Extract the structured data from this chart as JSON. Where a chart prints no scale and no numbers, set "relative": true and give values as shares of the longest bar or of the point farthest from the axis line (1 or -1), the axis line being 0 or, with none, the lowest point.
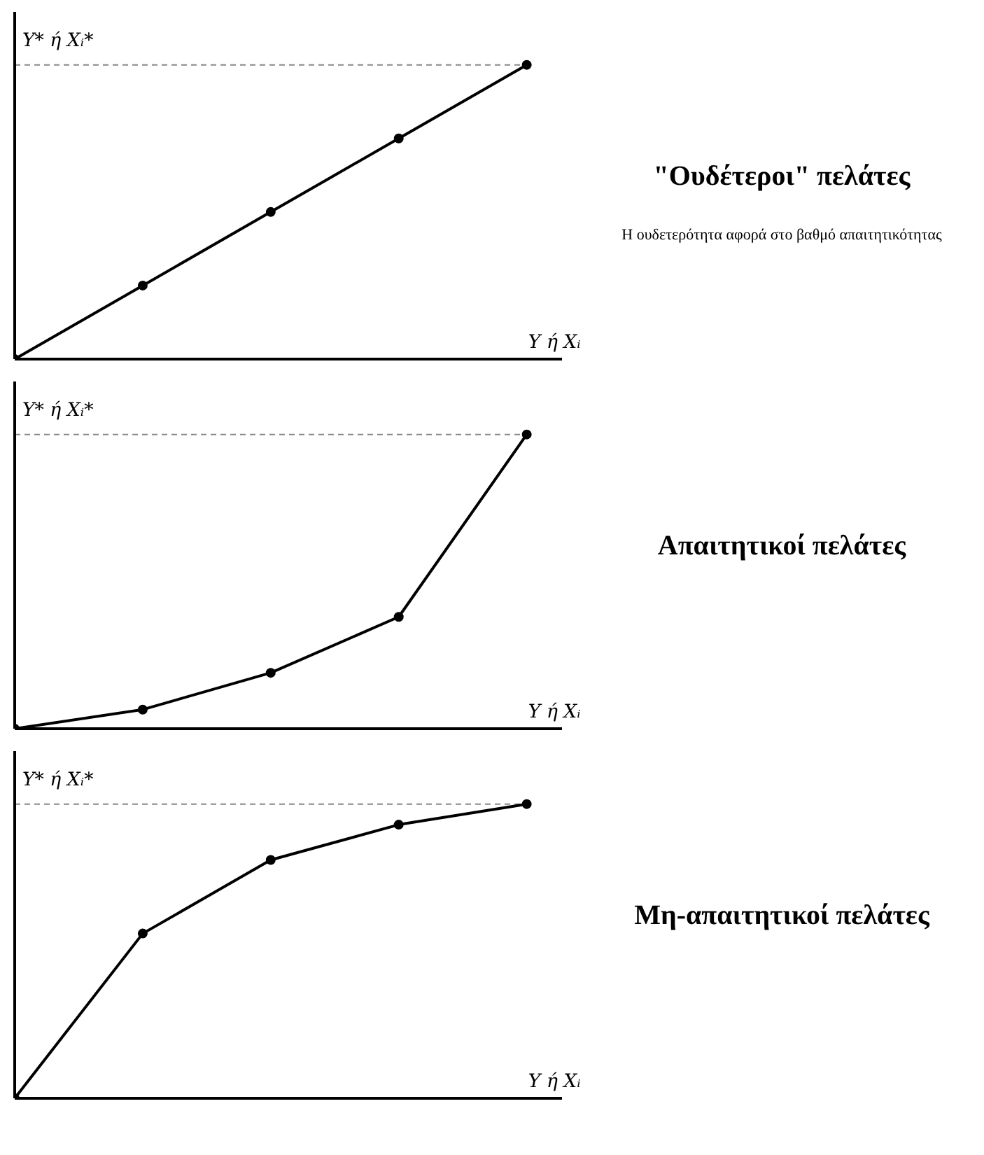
{
  "chart_data": [
    {
      "type": "line",
      "xlabel": "Y ή Xᵢ",
      "ylabel": "Y* ή Xᵢ*",
      "categories": [
        null,
        null,
        null,
        null,
        null
      ],
      "relative": true,
      "color": "#000000",
      "marker": "circle",
      "values": [
        0,
        0.25,
        0.5,
        0.75,
        1
      ],
      "ref_lines": [
        {
          "axis": "y",
          "value": 1,
          "line_style": "dashed"
        }
      ],
      "annotations": [
        "\"Ουδέτεροι\" πελάτες",
        "Η ουδετερότητα αφορά στο βαθμό απαιτητικότητας"
      ]
    },
    {
      "type": "line",
      "xlabel": "Y ή Xᵢ",
      "ylabel": "Y* ή Xᵢ*",
      "categories": [
        null,
        null,
        null,
        null,
        null
      ],
      "relative": true,
      "color": "#000000",
      "marker": "circle",
      "values": [
        0,
        0.065,
        0.19,
        0.38,
        1
      ],
      "ref_lines": [
        {
          "axis": "y",
          "value": 1,
          "line_style": "dashed"
        }
      ],
      "annotations": [
        "Απαιτητικοί πελάτες"
      ]
    },
    {
      "type": "line",
      "xlabel": "Y ή Xᵢ",
      "ylabel": "Y* ή Xᵢ*",
      "categories": [
        null,
        null,
        null,
        null,
        null
      ],
      "relative": true,
      "color": "#000000",
      "marker": "circle",
      "values": [
        0,
        0.56,
        0.81,
        0.93,
        1
      ],
      "ref_lines": [
        {
          "axis": "y",
          "value": 1,
          "line_style": "dashed"
        }
      ],
      "annotations": [
        "Μη-απαιτητικοί πελάτες"
      ]
    }
  ]
}
